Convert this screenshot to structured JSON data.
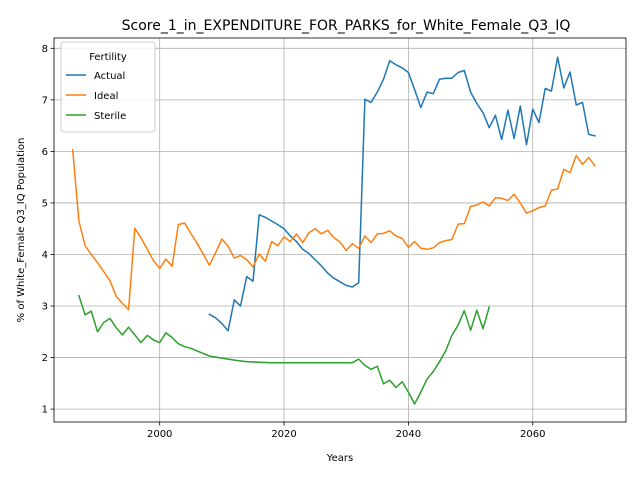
{
  "chart_data": {
    "type": "line",
    "title": "Score_1_in_EXPENDITURE_FOR_PARKS_for_White_Female_Q3_IQ",
    "xlabel": "Years",
    "ylabel": "% of White_Female Q3_IQ Population",
    "xlim": [
      1983,
      2075
    ],
    "ylim": [
      0.75,
      8.2
    ],
    "xticks": [
      2000,
      2020,
      2040,
      2060
    ],
    "yticks": [
      1,
      2,
      3,
      4,
      5,
      6,
      7,
      8
    ],
    "grid": true,
    "legend": {
      "title": "Fertility",
      "placement": "top-left"
    },
    "series": [
      {
        "name": "Actual",
        "color": "#1f77b4",
        "x": [
          2008,
          2009,
          2010,
          2011,
          2012,
          2013,
          2014,
          2015,
          2016,
          2017,
          2018,
          2019,
          2020,
          2021,
          2022,
          2023,
          2024,
          2025,
          2026,
          2027,
          2028,
          2029,
          2030,
          2031,
          2032,
          2033,
          2034,
          2035,
          2036,
          2037,
          2038,
          2039,
          2040,
          2041,
          2042,
          2043,
          2044,
          2045,
          2046,
          2047,
          2048,
          2049,
          2050,
          2051,
          2052,
          2053,
          2054,
          2055,
          2056,
          2057,
          2058,
          2059,
          2060,
          2061,
          2062,
          2063,
          2064,
          2065,
          2066,
          2067,
          2068,
          2069,
          2070
        ],
        "y": [
          2.84,
          2.77,
          2.66,
          2.52,
          3.12,
          3.0,
          3.57,
          3.48,
          4.77,
          4.72,
          4.65,
          4.58,
          4.5,
          4.36,
          4.25,
          4.1,
          4.02,
          3.9,
          3.78,
          3.64,
          3.54,
          3.47,
          3.4,
          3.37,
          3.45,
          7.01,
          6.95,
          7.15,
          7.4,
          7.76,
          7.68,
          7.62,
          7.53,
          7.2,
          6.85,
          7.15,
          7.12,
          7.4,
          7.42,
          7.42,
          7.53,
          7.57,
          7.15,
          6.93,
          6.75,
          6.46,
          6.7,
          6.23,
          6.8,
          6.25,
          6.88,
          6.13,
          6.82,
          6.56,
          7.22,
          7.17,
          7.83,
          7.23,
          7.54,
          6.9,
          6.95,
          6.33,
          6.3
        ]
      },
      {
        "name": "Ideal",
        "color": "#ff7f0e",
        "x": [
          1986,
          1987,
          1988,
          1989,
          1990,
          1991,
          1992,
          1993,
          1994,
          1995,
          1996,
          1997,
          1998,
          1999,
          2000,
          2001,
          2002,
          2003,
          2004,
          2005,
          2006,
          2007,
          2008,
          2009,
          2010,
          2011,
          2012,
          2013,
          2014,
          2015,
          2016,
          2017,
          2018,
          2019,
          2020,
          2021,
          2022,
          2023,
          2024,
          2025,
          2026,
          2027,
          2028,
          2029,
          2030,
          2031,
          2032,
          2033,
          2034,
          2035,
          2036,
          2037,
          2038,
          2039,
          2040,
          2041,
          2042,
          2043,
          2044,
          2045,
          2046,
          2047,
          2048,
          2049,
          2050,
          2051,
          2052,
          2053,
          2054,
          2055,
          2056,
          2057,
          2058,
          2059,
          2060,
          2061,
          2062,
          2063,
          2064,
          2065,
          2066,
          2067,
          2068,
          2069,
          2070
        ],
        "y": [
          6.03,
          4.65,
          4.17,
          4.0,
          3.84,
          3.67,
          3.49,
          3.19,
          3.05,
          2.93,
          4.51,
          4.32,
          4.1,
          3.88,
          3.73,
          3.91,
          3.77,
          4.58,
          4.61,
          4.41,
          4.22,
          4.01,
          3.79,
          4.04,
          4.3,
          4.16,
          3.93,
          3.98,
          3.9,
          3.76,
          4.01,
          3.87,
          4.25,
          4.17,
          4.34,
          4.25,
          4.4,
          4.23,
          4.42,
          4.5,
          4.4,
          4.47,
          4.33,
          4.24,
          4.08,
          4.21,
          4.12,
          4.36,
          4.23,
          4.4,
          4.41,
          4.46,
          4.36,
          4.31,
          4.14,
          4.25,
          4.12,
          4.1,
          4.13,
          4.23,
          4.27,
          4.29,
          4.59,
          4.6,
          4.93,
          4.96,
          5.02,
          4.94,
          5.1,
          5.09,
          5.05,
          5.17,
          5.0,
          4.8,
          4.85,
          4.91,
          4.94,
          5.25,
          5.27,
          5.65,
          5.59,
          5.92,
          5.75,
          5.88,
          5.72
        ]
      },
      {
        "name": "Sterile",
        "color": "#2ca02c",
        "x": [
          1987,
          1988,
          1989,
          1990,
          1991,
          1992,
          1993,
          1994,
          1995,
          1996,
          1997,
          1998,
          1999,
          2000,
          2001,
          2002,
          2003,
          2004,
          2005,
          2006,
          2007,
          2008,
          2010,
          2012,
          2014,
          2016,
          2018,
          2020,
          2022,
          2024,
          2026,
          2028,
          2030,
          2031,
          2032,
          2033,
          2034,
          2035,
          2036,
          2037,
          2038,
          2039,
          2040,
          2041,
          2042,
          2043,
          2044,
          2045,
          2046,
          2047,
          2048,
          2049,
          2050,
          2051,
          2052,
          2053
        ],
        "y": [
          3.2,
          2.83,
          2.9,
          2.5,
          2.68,
          2.76,
          2.58,
          2.44,
          2.59,
          2.44,
          2.29,
          2.43,
          2.34,
          2.29,
          2.48,
          2.39,
          2.27,
          2.21,
          2.18,
          2.13,
          2.08,
          2.03,
          1.99,
          1.95,
          1.92,
          1.91,
          1.9,
          1.9,
          1.9,
          1.9,
          1.9,
          1.9,
          1.9,
          1.9,
          1.97,
          1.85,
          1.77,
          1.83,
          1.49,
          1.56,
          1.42,
          1.53,
          1.33,
          1.1,
          1.33,
          1.58,
          1.73,
          1.92,
          2.13,
          2.43,
          2.63,
          2.91,
          2.53,
          2.92,
          2.56,
          2.98
        ]
      }
    ]
  }
}
